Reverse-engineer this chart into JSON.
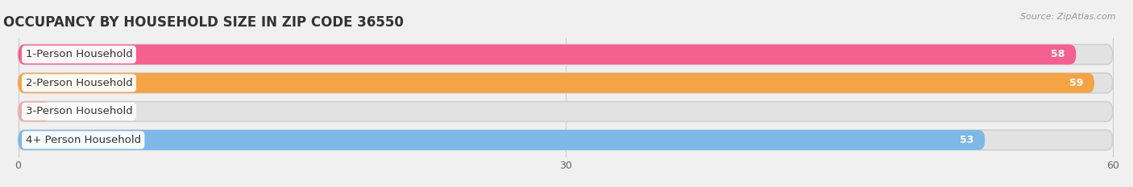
{
  "title": "OCCUPANCY BY HOUSEHOLD SIZE IN ZIP CODE 36550",
  "source": "Source: ZipAtlas.com",
  "categories": [
    "1-Person Household",
    "2-Person Household",
    "3-Person Household",
    "4+ Person Household"
  ],
  "values": [
    58,
    59,
    0,
    53
  ],
  "bar_colors": [
    "#F46090",
    "#F5A445",
    "#F0AAAA",
    "#7DB8E8"
  ],
  "background_color": "#f0f0f0",
  "bar_bg_color": "#e2e2e2",
  "xlim": [
    0,
    60
  ],
  "xticks": [
    0,
    30,
    60
  ],
  "title_fontsize": 12,
  "label_fontsize": 9.5,
  "value_fontsize": 9
}
